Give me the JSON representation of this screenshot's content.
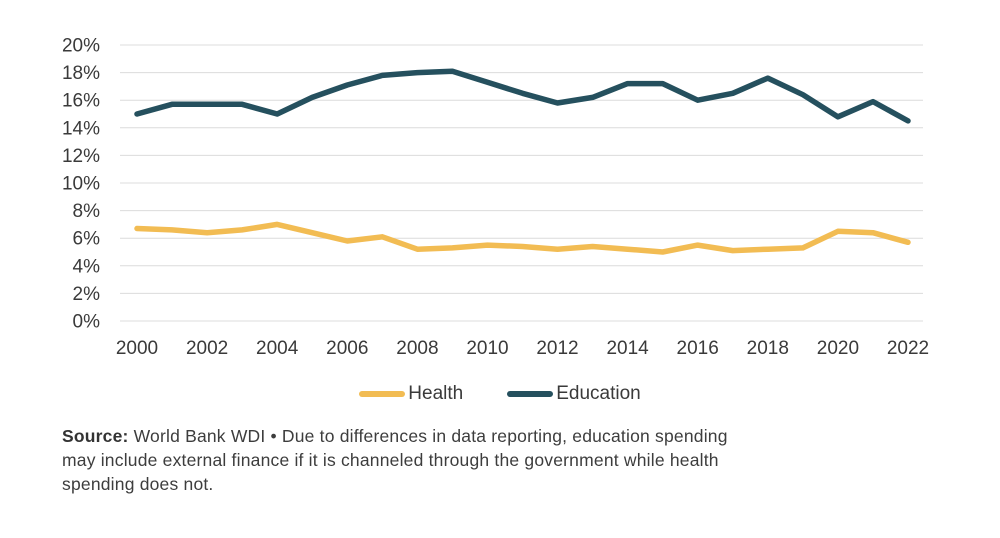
{
  "chart_data": {
    "type": "line",
    "title": "",
    "xlabel": "",
    "ylabel": "",
    "x": [
      2000,
      2001,
      2002,
      2003,
      2004,
      2005,
      2006,
      2007,
      2008,
      2009,
      2010,
      2011,
      2012,
      2013,
      2014,
      2015,
      2016,
      2017,
      2018,
      2019,
      2020,
      2021,
      2022
    ],
    "series": [
      {
        "name": "Health",
        "color": "#F2BC53",
        "values": [
          6.7,
          6.6,
          6.4,
          6.6,
          7.0,
          6.4,
          5.8,
          6.1,
          5.2,
          5.3,
          5.5,
          5.4,
          5.2,
          5.4,
          5.2,
          5.0,
          5.5,
          5.1,
          5.2,
          5.3,
          6.5,
          6.4,
          5.7
        ]
      },
      {
        "name": "Education",
        "color": "#25505E",
        "values": [
          15.0,
          15.7,
          15.7,
          15.7,
          15.0,
          16.2,
          17.1,
          17.8,
          18.0,
          18.1,
          17.3,
          16.5,
          15.8,
          16.2,
          17.2,
          17.2,
          16.0,
          16.5,
          17.6,
          16.4,
          14.8,
          15.9,
          14.5
        ]
      }
    ],
    "ylim": [
      0,
      20
    ],
    "yticks": [
      0,
      2,
      4,
      6,
      8,
      10,
      12,
      14,
      16,
      18,
      20
    ],
    "ytick_suffix": "%",
    "xticks": [
      2000,
      2002,
      2004,
      2006,
      2008,
      2010,
      2012,
      2014,
      2016,
      2018,
      2020,
      2022
    ],
    "grid": "horizontal",
    "legend_position": "bottom",
    "gridline_color": "#DCDCDC",
    "axis_text_color": "#3A3A3A"
  },
  "source": {
    "label": "Source:",
    "lines": [
      "World Bank WDI • Due to differences in data reporting, education spending",
      "may include external finance if it is channeled through the government while health",
      "spending does not."
    ]
  }
}
